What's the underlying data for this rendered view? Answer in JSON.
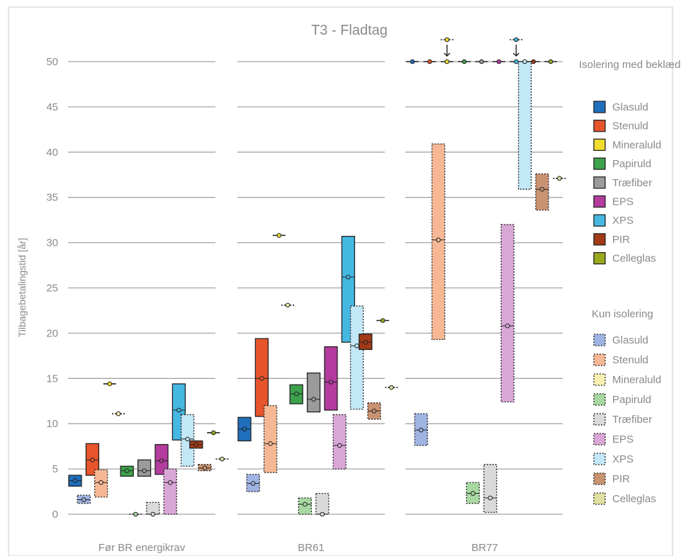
{
  "chart_data": {
    "type": "range-bar",
    "title": "T3 - Fladtag",
    "ylabel": "Tilbagebetalingstid  [år]",
    "ylim": [
      0,
      50
    ],
    "yticks": [
      0,
      5,
      10,
      15,
      20,
      25,
      30,
      35,
      40,
      45,
      50
    ],
    "grid": true,
    "groups": [
      "Før BR energikrav",
      "BR61",
      "BR77"
    ],
    "legend_position": "right",
    "legend_titles": {
      "with_cladding": "Isolering med beklædning:",
      "insulation_only": "Kun isolering"
    },
    "series": [
      {
        "name": "Glasuld",
        "color": "#1f6fbd",
        "style": "solid"
      },
      {
        "name": "Stenuld",
        "color": "#e8542c",
        "style": "solid"
      },
      {
        "name": "Mineraluld",
        "color": "#f2dc2e",
        "style": "solid"
      },
      {
        "name": "Papiruld",
        "color": "#3da24c",
        "style": "solid"
      },
      {
        "name": "Træfiber",
        "color": "#9b9b9b",
        "style": "solid"
      },
      {
        "name": "EPS",
        "color": "#b43c9e",
        "style": "solid"
      },
      {
        "name": "XPS",
        "color": "#45b8e2",
        "style": "solid"
      },
      {
        "name": "PIR",
        "color": "#a23a17",
        "style": "solid"
      },
      {
        "name": "Celleglas",
        "color": "#9aa81e",
        "style": "solid"
      },
      {
        "name": "Glasuld",
        "color": "#9fb4e2",
        "style": "dotted"
      },
      {
        "name": "Stenuld",
        "color": "#f6b894",
        "style": "dotted"
      },
      {
        "name": "Mineraluld",
        "color": "#f8f0b0",
        "style": "dotted"
      },
      {
        "name": "Papiruld",
        "color": "#a7d8a2",
        "style": "dotted"
      },
      {
        "name": "Træfiber",
        "color": "#dadada",
        "style": "dotted"
      },
      {
        "name": "EPS",
        "color": "#d9a7d6",
        "style": "dotted"
      },
      {
        "name": "XPS",
        "color": "#c2e7f6",
        "style": "dotted"
      },
      {
        "name": "PIR",
        "color": "#c99372",
        "style": "dotted"
      },
      {
        "name": "Celleglas",
        "color": "#dfe0a0",
        "style": "dotted"
      }
    ],
    "data": {
      "Før BR energikrav": [
        {
          "series": 0,
          "low": 3.1,
          "high": 4.3,
          "mid": 3.7
        },
        {
          "series": 9,
          "low": 1.2,
          "high": 2.1,
          "mid": 1.6
        },
        {
          "series": 1,
          "low": 4.3,
          "high": 7.8,
          "mid": 6.0
        },
        {
          "series": 10,
          "low": 1.9,
          "high": 4.9,
          "mid": 3.5
        },
        {
          "series": 2,
          "low": 14.4,
          "high": 14.4,
          "mid": 14.4
        },
        {
          "series": 11,
          "low": 11.1,
          "high": 11.1,
          "mid": 11.1
        },
        {
          "series": 3,
          "low": 4.2,
          "high": 5.3,
          "mid": 4.8
        },
        {
          "series": 12,
          "low": 0,
          "high": 0,
          "mid": 0
        },
        {
          "series": 4,
          "low": 4.2,
          "high": 6.0,
          "mid": 4.8
        },
        {
          "series": 13,
          "low": 0,
          "high": 1.3,
          "mid": 0
        },
        {
          "series": 5,
          "low": 4.4,
          "high": 7.7,
          "mid": 5.9
        },
        {
          "series": 14,
          "low": 0,
          "high": 5.0,
          "mid": 3.5
        },
        {
          "series": 6,
          "low": 8.2,
          "high": 14.4,
          "mid": 11.5
        },
        {
          "series": 15,
          "low": 5.3,
          "high": 11.0,
          "mid": 8.3
        },
        {
          "series": 7,
          "low": 7.3,
          "high": 8.1,
          "mid": 7.7
        },
        {
          "series": 16,
          "low": 4.8,
          "high": 5.5,
          "mid": 5.1
        },
        {
          "series": 8,
          "low": 9.0,
          "high": 9.0,
          "mid": 9.0
        },
        {
          "series": 17,
          "low": 6.1,
          "high": 6.1,
          "mid": 6.1
        }
      ],
      "BR61": [
        {
          "series": 0,
          "low": 8.1,
          "high": 10.7,
          "mid": 9.4
        },
        {
          "series": 9,
          "low": 2.5,
          "high": 4.4,
          "mid": 3.4
        },
        {
          "series": 1,
          "low": 10.8,
          "high": 19.4,
          "mid": 15.0
        },
        {
          "series": 10,
          "low": 4.6,
          "high": 12.0,
          "mid": 7.8
        },
        {
          "series": 2,
          "low": 30.8,
          "high": 30.8,
          "mid": 30.8
        },
        {
          "series": 11,
          "low": 23.1,
          "high": 23.1,
          "mid": 23.1
        },
        {
          "series": 3,
          "low": 12.2,
          "high": 14.3,
          "mid": 13.3
        },
        {
          "series": 12,
          "low": 0,
          "high": 1.8,
          "mid": 1.1
        },
        {
          "series": 4,
          "low": 11.3,
          "high": 15.6,
          "mid": 12.7
        },
        {
          "series": 13,
          "low": 0,
          "high": 2.3,
          "mid": 0
        },
        {
          "series": 5,
          "low": 11.5,
          "high": 18.5,
          "mid": 14.6
        },
        {
          "series": 14,
          "low": 5.0,
          "high": 11.0,
          "mid": 7.6
        },
        {
          "series": 6,
          "low": 19.0,
          "high": 30.7,
          "mid": 26.2
        },
        {
          "series": 15,
          "low": 11.6,
          "high": 23.0,
          "mid": 18.6
        },
        {
          "series": 7,
          "low": 18.2,
          "high": 19.9,
          "mid": 19.0
        },
        {
          "series": 16,
          "low": 10.5,
          "high": 12.3,
          "mid": 11.4
        },
        {
          "series": 8,
          "low": 21.4,
          "high": 21.4,
          "mid": 21.4
        },
        {
          "series": 17,
          "low": 14.0,
          "high": 14.0,
          "mid": 14.0
        }
      ],
      "BR77": [
        {
          "series": 0,
          "low": 50,
          "high": 50,
          "mid": 50
        },
        {
          "series": 9,
          "low": 7.6,
          "high": 11.1,
          "mid": 9.3
        },
        {
          "series": 1,
          "low": 50,
          "high": 50,
          "mid": 50
        },
        {
          "series": 10,
          "low": 19.3,
          "high": 40.9,
          "mid": 30.3
        },
        {
          "series": 2,
          "low": 50,
          "high": 50,
          "mid": 50,
          "offchart": true
        },
        {
          "series": 11,
          "low": null,
          "high": null,
          "mid": null
        },
        {
          "series": 3,
          "low": 50,
          "high": 50,
          "mid": 50
        },
        {
          "series": 12,
          "low": 1.2,
          "high": 3.5,
          "mid": 2.3
        },
        {
          "series": 4,
          "low": 50,
          "high": 50,
          "mid": 50
        },
        {
          "series": 13,
          "low": 0.2,
          "high": 5.5,
          "mid": 1.8
        },
        {
          "series": 5,
          "low": 50,
          "high": 50,
          "mid": 50
        },
        {
          "series": 14,
          "low": 12.4,
          "high": 32.0,
          "mid": 20.8
        },
        {
          "series": 6,
          "low": 50,
          "high": 50,
          "mid": 50,
          "offchart": true
        },
        {
          "series": 15,
          "low": 35.9,
          "high": 50,
          "mid": 50
        },
        {
          "series": 7,
          "low": 50,
          "high": 50,
          "mid": 50
        },
        {
          "series": 16,
          "low": 33.6,
          "high": 37.6,
          "mid": 35.9
        },
        {
          "series": 8,
          "low": 50,
          "high": 50,
          "mid": 50
        },
        {
          "series": 17,
          "low": 37.1,
          "high": 37.1,
          "mid": 37.1
        }
      ]
    }
  }
}
